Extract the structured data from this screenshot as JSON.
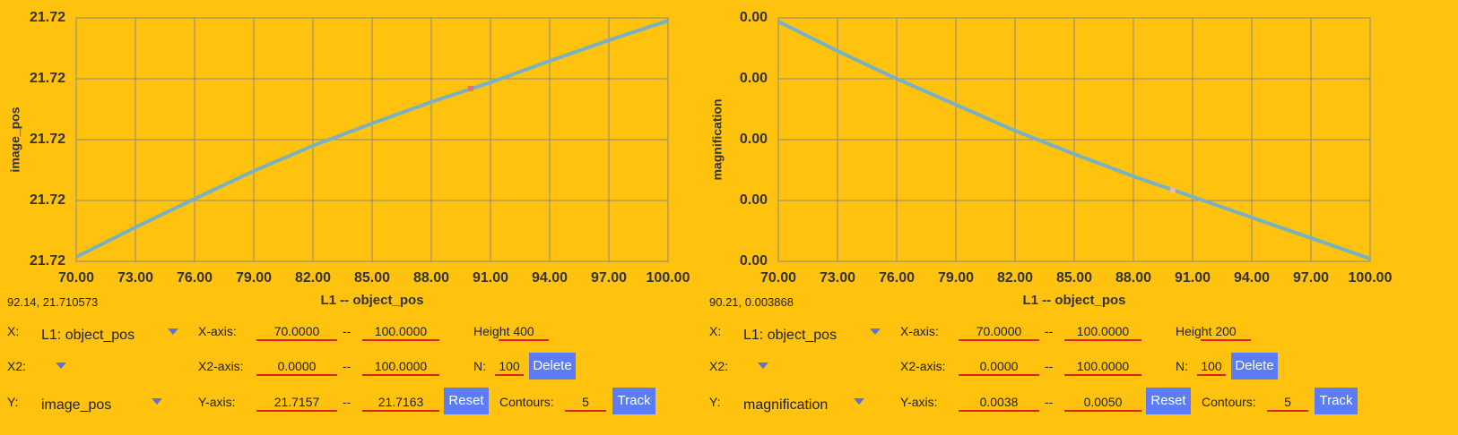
{
  "chart_data": [
    {
      "type": "line",
      "x_label": "L1 -- object_pos",
      "y_label": "image_pos",
      "xlim": [
        70,
        100
      ],
      "xticks": [
        {
          "value": 70,
          "label": "70.00"
        },
        {
          "value": 73,
          "label": "73.00"
        },
        {
          "value": 76,
          "label": "76.00"
        },
        {
          "value": 79,
          "label": "79.00"
        },
        {
          "value": 82,
          "label": "82.00"
        },
        {
          "value": 85,
          "label": "85.00"
        },
        {
          "value": 88,
          "label": "88.00"
        },
        {
          "value": 91,
          "label": "91.00"
        },
        {
          "value": 94,
          "label": "94.00"
        },
        {
          "value": 97,
          "label": "97.00"
        },
        {
          "value": 100,
          "label": "100.00"
        }
      ],
      "ylim": [
        21.7157,
        21.7163
      ],
      "yticks": [
        {
          "value": 21.7157,
          "label": "21.72"
        },
        {
          "value": 21.71585,
          "label": "21.72"
        },
        {
          "value": 21.716,
          "label": "21.72"
        },
        {
          "value": 21.71615,
          "label": "21.72"
        },
        {
          "value": 21.7163,
          "label": "21.72"
        }
      ],
      "grid": true,
      "color": "#78b0c4",
      "x": [
        70,
        73,
        76,
        79,
        82,
        85,
        88,
        91,
        94,
        97,
        100
      ],
      "values": [
        21.715711,
        21.715784,
        21.715854,
        21.715923,
        21.715985,
        21.71604,
        21.716093,
        21.716141,
        21.716194,
        21.716245,
        21.716293
      ],
      "marker": {
        "x": 90,
        "y": 21.716126,
        "color": "#e0786a"
      }
    },
    {
      "type": "line",
      "x_label": "L1 -- object_pos",
      "y_label": "magnification",
      "xlim": [
        70,
        100
      ],
      "xticks": [
        {
          "value": 70,
          "label": "70.00"
        },
        {
          "value": 73,
          "label": "73.00"
        },
        {
          "value": 76,
          "label": "76.00"
        },
        {
          "value": 79,
          "label": "79.00"
        },
        {
          "value": 82,
          "label": "82.00"
        },
        {
          "value": 85,
          "label": "85.00"
        },
        {
          "value": 88,
          "label": "88.00"
        },
        {
          "value": 91,
          "label": "91.00"
        },
        {
          "value": 94,
          "label": "94.00"
        },
        {
          "value": 97,
          "label": "97.00"
        },
        {
          "value": 100,
          "label": "100.00"
        }
      ],
      "ylim": [
        0.0038,
        0.005
      ],
      "yticks": [
        {
          "value": 0.0038,
          "label": "0.00"
        },
        {
          "value": 0.0041,
          "label": "0.00"
        },
        {
          "value": 0.0044,
          "label": "0.00"
        },
        {
          "value": 0.0047,
          "label": "0.00"
        },
        {
          "value": 0.005,
          "label": "0.00"
        }
      ],
      "grid": true,
      "color": "#78b0c4",
      "x": [
        70,
        73,
        76,
        79,
        82,
        85,
        88,
        91,
        94,
        97,
        100
      ],
      "values": [
        0.004982,
        0.004837,
        0.0047,
        0.004572,
        0.004444,
        0.004329,
        0.004219,
        0.004118,
        0.004016,
        0.003915,
        0.003813
      ],
      "marker": {
        "x": 90,
        "y": 0.004149,
        "color": "#f0b8a8"
      }
    }
  ],
  "panels": [
    {
      "readout": "92.14, 21.710573",
      "x_label": "X:",
      "x_select": "L1: object_pos",
      "x_axis_label": "X-axis:",
      "x_min": "70.0000",
      "x_sep": "--",
      "x_max": "100.0000",
      "height_label": "Height",
      "height": "400",
      "x2_label": "X2:",
      "x2_axis_label": "X2-axis:",
      "x2_min": "0.0000",
      "x2_sep": "--",
      "x2_max": "100.0000",
      "n_label": "N:",
      "n": "100",
      "delete": "Delete",
      "y_label": "Y:",
      "y_select": "image_pos",
      "y_axis_label": "Y-axis:",
      "y_min": "21.7157",
      "y_sep": "--",
      "y_max": "21.7163",
      "reset": "Reset",
      "contours_label": "Contours:",
      "contours": "5",
      "track": "Track"
    },
    {
      "readout": "90.21, 0.003868",
      "x_label": "X:",
      "x_select": "L1: object_pos",
      "x_axis_label": "X-axis:",
      "x_min": "70.0000",
      "x_sep": "--",
      "x_max": "100.0000",
      "height_label": "Height",
      "height": "200",
      "x2_label": "X2:",
      "x2_axis_label": "X2-axis:",
      "x2_min": "0.0000",
      "x2_sep": "--",
      "x2_max": "100.0000",
      "n_label": "N:",
      "n": "100",
      "delete": "Delete",
      "y_label": "Y:",
      "y_select": "magnification",
      "y_axis_label": "Y-axis:",
      "y_min": "0.0038",
      "y_sep": "--",
      "y_max": "0.0050",
      "reset": "Reset",
      "contours_label": "Contours:",
      "contours": "5",
      "track": "Track"
    }
  ]
}
